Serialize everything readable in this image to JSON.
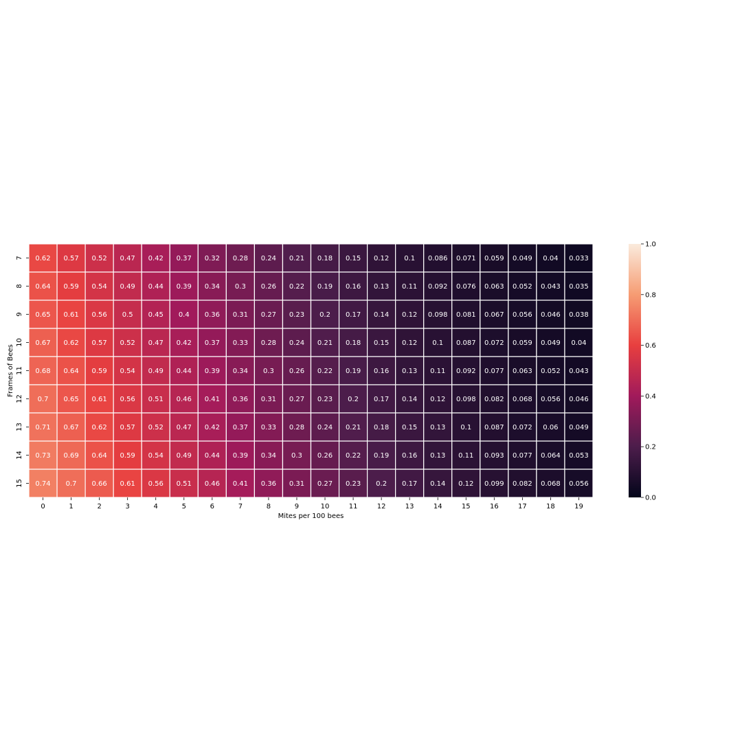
{
  "chart_data": {
    "type": "heatmap",
    "title": "",
    "xlabel": "Mites per 100 bees",
    "ylabel": "Frames of Bees",
    "x_categories": [
      "0",
      "1",
      "2",
      "3",
      "4",
      "5",
      "6",
      "7",
      "8",
      "9",
      "10",
      "11",
      "12",
      "13",
      "14",
      "15",
      "16",
      "17",
      "18",
      "19"
    ],
    "y_categories": [
      "7",
      "8",
      "9",
      "10",
      "11",
      "12",
      "13",
      "14",
      "15"
    ],
    "values": [
      [
        0.62,
        0.57,
        0.52,
        0.47,
        0.42,
        0.37,
        0.32,
        0.28,
        0.24,
        0.21,
        0.18,
        0.15,
        0.12,
        0.1,
        0.086,
        0.071,
        0.059,
        0.049,
        0.04,
        0.033
      ],
      [
        0.64,
        0.59,
        0.54,
        0.49,
        0.44,
        0.39,
        0.34,
        0.3,
        0.26,
        0.22,
        0.19,
        0.16,
        0.13,
        0.11,
        0.092,
        0.076,
        0.063,
        0.052,
        0.043,
        0.035
      ],
      [
        0.65,
        0.61,
        0.56,
        0.5,
        0.45,
        0.4,
        0.36,
        0.31,
        0.27,
        0.23,
        0.2,
        0.17,
        0.14,
        0.12,
        0.098,
        0.081,
        0.067,
        0.056,
        0.046,
        0.038
      ],
      [
        0.67,
        0.62,
        0.57,
        0.52,
        0.47,
        0.42,
        0.37,
        0.33,
        0.28,
        0.24,
        0.21,
        0.18,
        0.15,
        0.12,
        0.1,
        0.087,
        0.072,
        0.059,
        0.049,
        0.04
      ],
      [
        0.68,
        0.64,
        0.59,
        0.54,
        0.49,
        0.44,
        0.39,
        0.34,
        0.3,
        0.26,
        0.22,
        0.19,
        0.16,
        0.13,
        0.11,
        0.092,
        0.077,
        0.063,
        0.052,
        0.043
      ],
      [
        0.7,
        0.65,
        0.61,
        0.56,
        0.51,
        0.46,
        0.41,
        0.36,
        0.31,
        0.27,
        0.23,
        0.2,
        0.17,
        0.14,
        0.12,
        0.098,
        0.082,
        0.068,
        0.056,
        0.046
      ],
      [
        0.71,
        0.67,
        0.62,
        0.57,
        0.52,
        0.47,
        0.42,
        0.37,
        0.33,
        0.28,
        0.24,
        0.21,
        0.18,
        0.15,
        0.13,
        0.1,
        0.087,
        0.072,
        0.06,
        0.049
      ],
      [
        0.73,
        0.69,
        0.64,
        0.59,
        0.54,
        0.49,
        0.44,
        0.39,
        0.34,
        0.3,
        0.26,
        0.22,
        0.19,
        0.16,
        0.13,
        0.11,
        0.093,
        0.077,
        0.064,
        0.053
      ],
      [
        0.74,
        0.7,
        0.66,
        0.61,
        0.56,
        0.51,
        0.46,
        0.41,
        0.36,
        0.31,
        0.27,
        0.23,
        0.2,
        0.17,
        0.14,
        0.12,
        0.099,
        0.082,
        0.068,
        0.056
      ]
    ],
    "vmin": 0,
    "vmax": 1,
    "annotations": true,
    "colormap": "rocket",
    "colormap_stops": [
      "#03051a",
      "#4c1d4b",
      "#a11a5b",
      "#e83f3f",
      "#f69c73",
      "#faebdd"
    ],
    "colorbar": {
      "ticks": [
        0.0,
        0.2,
        0.4,
        0.6,
        0.8,
        1.0
      ],
      "tick_labels": [
        "0.0",
        "0.2",
        "0.4",
        "0.6",
        "0.8",
        "1.0"
      ],
      "position": "right"
    },
    "cell_separator_color": "#ffffff"
  }
}
